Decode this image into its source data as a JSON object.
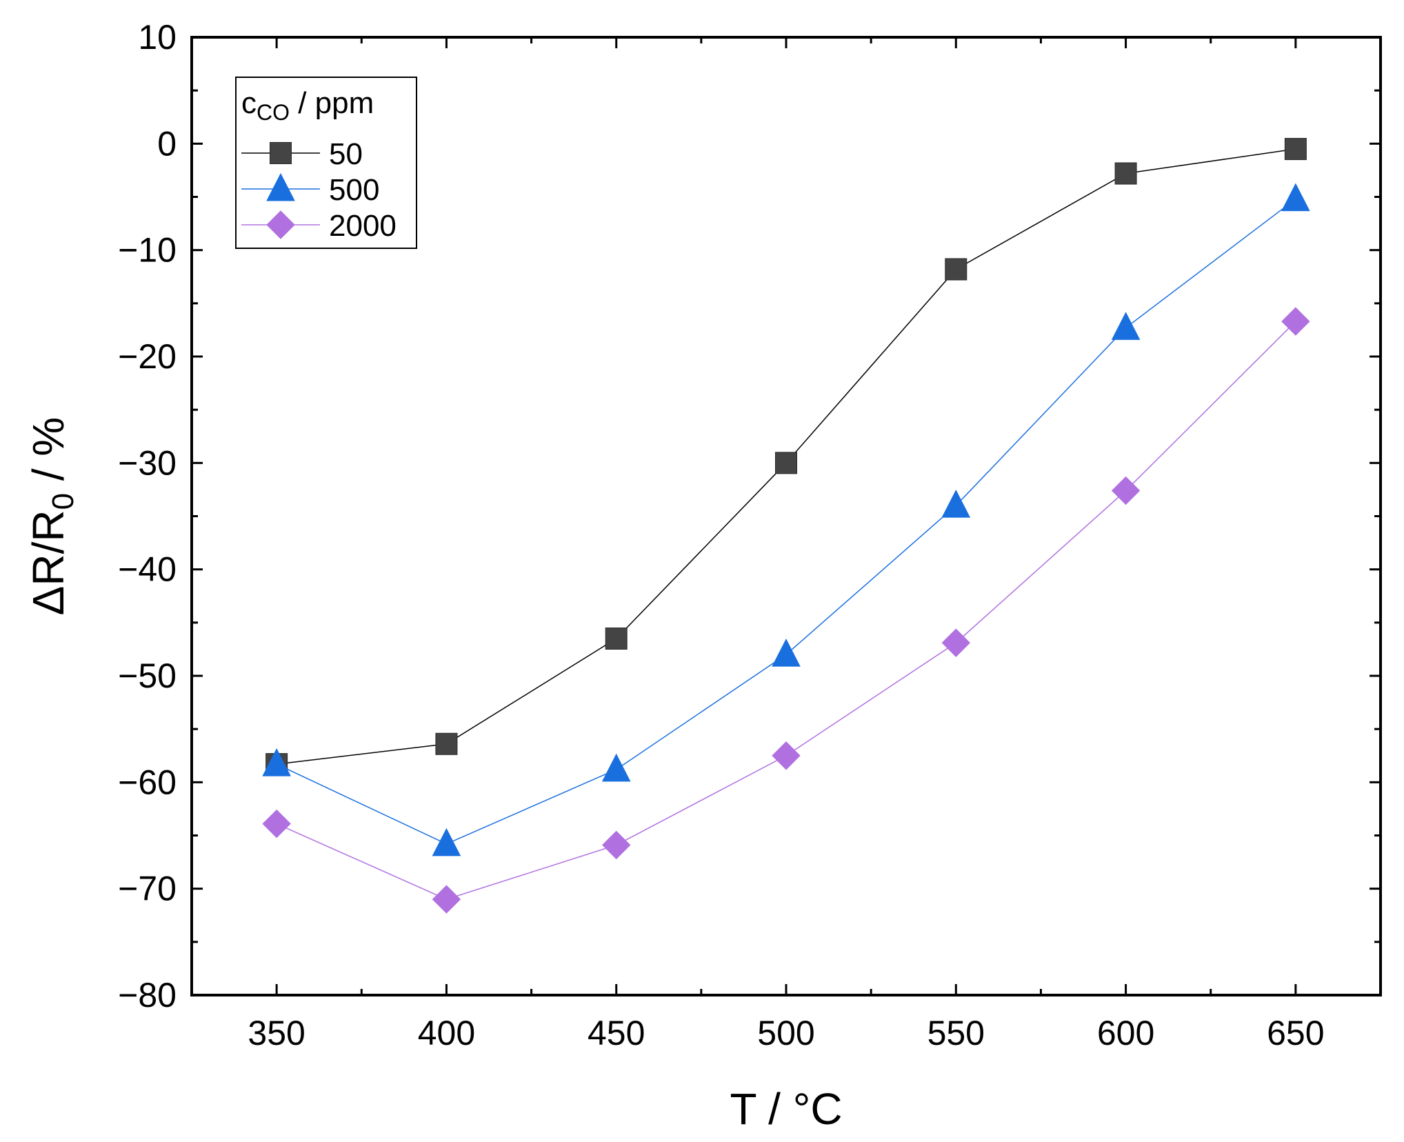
{
  "chart_data": {
    "type": "line",
    "title": "",
    "xlabel": "T / °C",
    "ylabel_parts": {
      "delta": "Δ",
      "r1": "R/R",
      "sub": "0",
      "tail": " / %"
    },
    "xlim": [
      325,
      675
    ],
    "ylim": [
      -80,
      10
    ],
    "x_ticks": [
      350,
      400,
      450,
      500,
      550,
      600,
      650
    ],
    "x_tick_labels": [
      "350",
      "400",
      "450",
      "500",
      "550",
      "600",
      "650"
    ],
    "x_minor_ticks": [
      375,
      425,
      475,
      525,
      575,
      625
    ],
    "y_ticks": [
      10,
      0,
      -10,
      -20,
      -30,
      -40,
      -50,
      -60,
      -70,
      -80
    ],
    "y_tick_labels": [
      "10",
      "0",
      "−10",
      "−20",
      "−30",
      "−40",
      "−50",
      "−60",
      "−70",
      "−80"
    ],
    "y_minor_ticks": [
      5,
      -5,
      -15,
      -25,
      -35,
      -45,
      -55,
      -65,
      -75
    ],
    "legend": {
      "title_main": "c",
      "title_sub": "CO",
      "title_tail": " / ppm",
      "placement": "top-left"
    },
    "x": [
      350,
      400,
      450,
      500,
      550,
      600,
      650
    ],
    "series": [
      {
        "name": "50",
        "marker": "square",
        "color": "#444444",
        "line_color": "#000000",
        "values": [
          -58.3,
          -56.4,
          -46.5,
          -30.0,
          -11.8,
          -2.8,
          -0.5
        ]
      },
      {
        "name": "500",
        "marker": "triangle",
        "color": "#1a6fdf",
        "line_color": "#1a6fdf",
        "values": [
          -58.3,
          -65.8,
          -58.8,
          -48.0,
          -34.0,
          -17.3,
          -5.2
        ]
      },
      {
        "name": "2000",
        "marker": "diamond",
        "color": "#b070e0",
        "line_color": "#b070e0",
        "values": [
          -63.9,
          -71.0,
          -65.9,
          -57.5,
          -46.9,
          -32.6,
          -16.7
        ]
      }
    ]
  }
}
